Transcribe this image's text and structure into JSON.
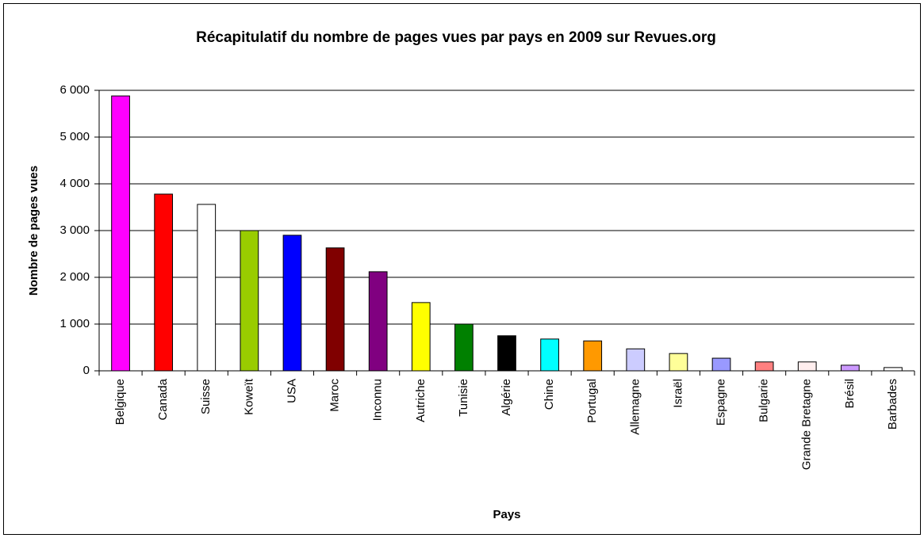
{
  "chart_data": {
    "type": "bar",
    "title": "Récapitulatif du nombre de pages vues par pays en 2009 sur Revues.org",
    "x_label": "Pays",
    "y_label": "Nombre de pages vues",
    "categories": [
      "Belgique",
      "Canada",
      "Suisse",
      "Koweït",
      "USA",
      "Maroc",
      "Inconnu",
      "Autriche",
      "Tunisie",
      "Algérie",
      "Chine",
      "Portugal",
      "Allemagne",
      "Israël",
      "Espagne",
      "Bulgarie",
      "Grande Bretagne",
      "Brésil",
      "Barbades"
    ],
    "values": [
      5880,
      3780,
      3560,
      3000,
      2900,
      2630,
      2120,
      1460,
      1000,
      750,
      680,
      640,
      470,
      370,
      270,
      190,
      190,
      120,
      70
    ],
    "colors": [
      "#ff00ff",
      "#ff0000",
      "#ffffff",
      "#99cc00",
      "#0000ff",
      "#800000",
      "#800080",
      "#ffff00",
      "#008000",
      "#000000",
      "#00ffff",
      "#ff9900",
      "#ccccff",
      "#ffff99",
      "#9999ff",
      "#ff8080",
      "#ffeeee",
      "#cc99ff",
      "#ffffff"
    ],
    "ylim": [
      0,
      6000
    ],
    "yticks": [
      0,
      {
        "value": 1000,
        "label": "1 000"
      },
      {
        "value": 2000,
        "label": "2 000"
      },
      {
        "value": 3000,
        "label": "3 000"
      },
      {
        "value": 4000,
        "label": "4 000"
      },
      {
        "value": 5000,
        "label": "5 000"
      },
      {
        "value": 6000,
        "label": "6 000"
      }
    ],
    "grid": true
  }
}
